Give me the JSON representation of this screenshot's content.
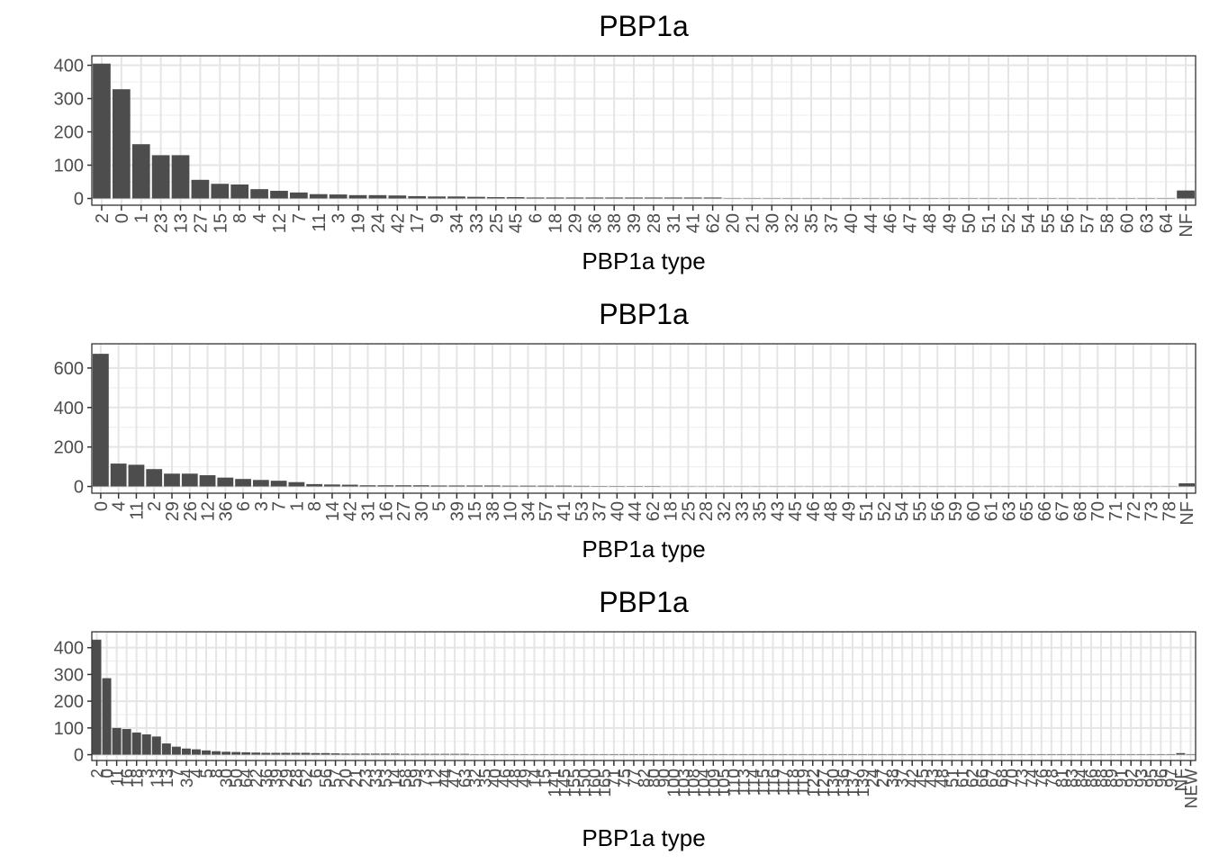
{
  "chart_data": [
    {
      "type": "bar",
      "title": "PBP1a",
      "xlabel": "PBP1a type",
      "ylabel": "",
      "yticks": [
        0,
        100,
        200,
        300,
        400
      ],
      "ylim": [
        0,
        415
      ],
      "bar_color": "#4d4d4d",
      "grid": true,
      "categories": [
        "2",
        "0",
        "1",
        "23",
        "13",
        "27",
        "15",
        "8",
        "4",
        "12",
        "7",
        "11",
        "3",
        "19",
        "24",
        "42",
        "17",
        "9",
        "34",
        "33",
        "25",
        "45",
        "6",
        "18",
        "29",
        "36",
        "38",
        "39",
        "28",
        "31",
        "41",
        "62",
        "20",
        "21",
        "30",
        "32",
        "35",
        "37",
        "40",
        "44",
        "46",
        "47",
        "48",
        "49",
        "50",
        "51",
        "52",
        "54",
        "55",
        "56",
        "57",
        "58",
        "60",
        "63",
        "64",
        "NF"
      ],
      "values": [
        405,
        328,
        163,
        130,
        130,
        56,
        44,
        42,
        28,
        23,
        18,
        13,
        12,
        10,
        10,
        9,
        7,
        6,
        6,
        5,
        4,
        4,
        3,
        3,
        3,
        3,
        3,
        3,
        3,
        3,
        3,
        3,
        1,
        1,
        1,
        1,
        1,
        1,
        1,
        1,
        1,
        1,
        1,
        1,
        1,
        1,
        1,
        1,
        1,
        1,
        1,
        1,
        1,
        1,
        1,
        24
      ]
    },
    {
      "type": "bar",
      "title": "PBP1a",
      "xlabel": "PBP1a type",
      "ylabel": "",
      "yticks": [
        0,
        200,
        400,
        600
      ],
      "ylim": [
        0,
        700
      ],
      "bar_color": "#4d4d4d",
      "grid": true,
      "categories": [
        "0",
        "4",
        "11",
        "2",
        "29",
        "26",
        "12",
        "36",
        "6",
        "3",
        "7",
        "1",
        "8",
        "14",
        "42",
        "31",
        "16",
        "27",
        "30",
        "5",
        "39",
        "15",
        "38",
        "10",
        "34",
        "57",
        "41",
        "53",
        "37",
        "40",
        "44",
        "62",
        "18",
        "25",
        "28",
        "32",
        "33",
        "35",
        "43",
        "45",
        "46",
        "48",
        "49",
        "51",
        "52",
        "54",
        "55",
        "56",
        "59",
        "60",
        "61",
        "63",
        "65",
        "66",
        "67",
        "68",
        "70",
        "71",
        "72",
        "73",
        "78",
        "NF"
      ],
      "values": [
        672,
        116,
        110,
        88,
        65,
        65,
        57,
        45,
        38,
        33,
        29,
        22,
        12,
        10,
        9,
        6,
        6,
        6,
        6,
        5,
        5,
        5,
        5,
        4,
        4,
        4,
        4,
        3,
        2,
        2,
        2,
        2,
        1,
        1,
        1,
        1,
        1,
        1,
        1,
        1,
        1,
        1,
        1,
        1,
        1,
        1,
        1,
        1,
        1,
        1,
        1,
        1,
        1,
        1,
        1,
        1,
        1,
        1,
        1,
        1,
        1,
        16
      ]
    },
    {
      "type": "bar",
      "title": "PBP1a",
      "xlabel": "PBP1a type",
      "ylabel": "",
      "yticks": [
        0,
        100,
        200,
        300,
        400
      ],
      "ylim": [
        0,
        445
      ],
      "bar_color": "#4d4d4d",
      "grid": true,
      "categories": [
        "2",
        "0",
        "11",
        "16",
        "18",
        "3",
        "13",
        "13",
        "7",
        "34",
        "4",
        "5",
        "8",
        "30",
        "50",
        "64",
        "22",
        "36",
        "39",
        "29",
        "28",
        "52",
        "6",
        "56",
        "57",
        "20",
        "21",
        "23",
        "33",
        "53",
        "14",
        "58",
        "59",
        "73",
        "12",
        "44",
        "47",
        "63",
        "32",
        "35",
        "40",
        "46",
        "48",
        "49",
        "14",
        "15",
        "141",
        "145",
        "155",
        "150",
        "160",
        "165",
        "71",
        "75",
        "77",
        "82",
        "80",
        "90",
        "100",
        "103",
        "108",
        "104",
        "109",
        "105",
        "110",
        "113",
        "114",
        "115",
        "116",
        "117",
        "118",
        "119",
        "122",
        "127",
        "130",
        "136",
        "137",
        "139",
        "24",
        "27",
        "38",
        "37",
        "42",
        "45",
        "43",
        "48",
        "51",
        "61",
        "62",
        "66",
        "67",
        "68",
        "70",
        "73",
        "74",
        "76",
        "78",
        "81",
        "83",
        "84",
        "86",
        "88",
        "89",
        "91",
        "92",
        "93",
        "95",
        "96",
        "97",
        "NF",
        "NEW"
      ],
      "values": [
        430,
        286,
        100,
        96,
        83,
        76,
        68,
        42,
        30,
        23,
        20,
        16,
        13,
        11,
        10,
        9,
        8,
        7,
        7,
        7,
        7,
        7,
        6,
        6,
        5,
        4,
        4,
        4,
        4,
        4,
        4,
        3,
        3,
        3,
        3,
        3,
        3,
        3,
        2,
        2,
        2,
        2,
        2,
        2,
        2,
        2,
        2,
        2,
        2,
        2,
        2,
        2,
        2,
        2,
        2,
        2,
        2,
        2,
        2,
        2,
        2,
        2,
        2,
        2,
        2,
        2,
        2,
        2,
        2,
        2,
        2,
        2,
        2,
        2,
        2,
        2,
        2,
        2,
        2,
        2,
        2,
        2,
        2,
        2,
        2,
        2,
        2,
        2,
        2,
        2,
        2,
        2,
        2,
        2,
        2,
        2,
        2,
        2,
        2,
        2,
        2,
        2,
        2,
        2,
        2,
        2,
        2,
        2,
        2,
        6,
        2
      ]
    }
  ]
}
